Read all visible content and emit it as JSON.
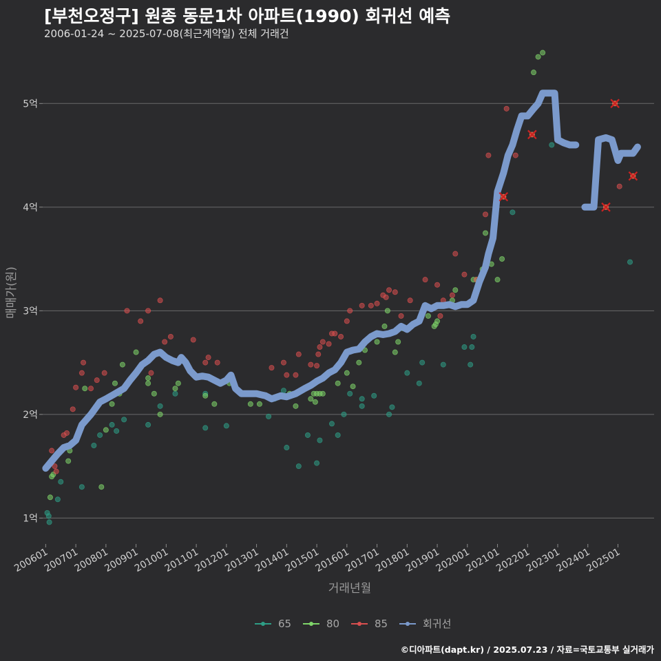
{
  "header": {
    "title": "[부천오정구] 원종 동문1차 아파트(1990) 회귀선 예측",
    "subtitle": "2006-01-24 ~ 2025-07-08(최근계약일) 전체 거래건"
  },
  "footer": {
    "caption": "©디아파트(dapt.kr) / 2025.07.23 / 자료=국토교통부 실거래가"
  },
  "colors": {
    "s65": "#2e9e86",
    "s80": "#7fd66a",
    "s85": "#d94f4f",
    "reg": "#7b9acc",
    "cancel": "#cc2222"
  },
  "chart_data": {
    "type": "scatter",
    "title": "[부천오정구] 원종 동문1차 아파트(1990) 회귀선 예측",
    "subtitle": "2006-01-24 ~ 2025-07-08(최근계약일) 전체 거래건",
    "xlabel": "거래년월",
    "ylabel": "매매가(원)",
    "ylim": [
      0.75,
      5.6
    ],
    "xlim": [
      2005.9,
      2026.2
    ],
    "yticks": [
      1,
      2,
      3,
      4,
      5
    ],
    "ytick_labels": [
      "1억",
      "2억",
      "3억",
      "4억",
      "5억"
    ],
    "xticks": [
      2006,
      2007,
      2008,
      2009,
      2010,
      2011,
      2012,
      2013,
      2014,
      2015,
      2016,
      2017,
      2018,
      2019,
      2020,
      2021,
      2022,
      2023,
      2024,
      2025
    ],
    "xtick_labels": [
      "200601",
      "200701",
      "200801",
      "200901",
      "201001",
      "201101",
      "201201",
      "201301",
      "201401",
      "201501",
      "201601",
      "201701",
      "201801",
      "201901",
      "202001",
      "202101",
      "202201",
      "202301",
      "202401",
      "202501"
    ],
    "grid": "horizontal",
    "legend_position": "bottom",
    "series": [
      {
        "name": "65",
        "kind": "scatter",
        "points": [
          [
            2006.05,
            1.05
          ],
          [
            2006.1,
            1.02
          ],
          [
            2006.12,
            0.96
          ],
          [
            2006.4,
            1.18
          ],
          [
            2006.5,
            1.35
          ],
          [
            2007.2,
            1.3
          ],
          [
            2007.6,
            1.7
          ],
          [
            2007.8,
            1.8
          ],
          [
            2008.2,
            1.9
          ],
          [
            2008.35,
            1.84
          ],
          [
            2008.6,
            1.95
          ],
          [
            2009.4,
            1.9
          ],
          [
            2009.8,
            2.08
          ],
          [
            2010.3,
            2.2
          ],
          [
            2011.3,
            2.2
          ],
          [
            2011.3,
            1.87
          ],
          [
            2012.0,
            1.89
          ],
          [
            2013.4,
            1.98
          ],
          [
            2013.6,
            2.15
          ],
          [
            2013.9,
            2.23
          ],
          [
            2014.0,
            1.68
          ],
          [
            2014.4,
            1.5
          ],
          [
            2014.7,
            1.8
          ],
          [
            2015.0,
            1.53
          ],
          [
            2015.1,
            1.75
          ],
          [
            2015.5,
            1.91
          ],
          [
            2015.7,
            1.8
          ],
          [
            2015.9,
            2.0
          ],
          [
            2016.1,
            2.2
          ],
          [
            2016.5,
            2.08
          ],
          [
            2016.5,
            2.15
          ],
          [
            2016.9,
            2.18
          ],
          [
            2017.4,
            2.0
          ],
          [
            2017.5,
            2.07
          ],
          [
            2018.0,
            2.4
          ],
          [
            2018.4,
            2.3
          ],
          [
            2018.5,
            2.5
          ],
          [
            2019.2,
            2.48
          ],
          [
            2019.9,
            2.65
          ],
          [
            2020.1,
            2.48
          ],
          [
            2020.15,
            2.65
          ],
          [
            2020.2,
            2.75
          ],
          [
            2021.5,
            3.95
          ],
          [
            2022.8,
            4.6
          ],
          [
            2025.4,
            3.47
          ]
        ]
      },
      {
        "name": "80",
        "kind": "scatter",
        "points": [
          [
            2006.15,
            1.2
          ],
          [
            2006.2,
            1.4
          ],
          [
            2006.25,
            1.42
          ],
          [
            2006.75,
            1.55
          ],
          [
            2006.8,
            1.65
          ],
          [
            2007.3,
            2.25
          ],
          [
            2007.85,
            1.3
          ],
          [
            2008.0,
            1.85
          ],
          [
            2008.2,
            2.1
          ],
          [
            2008.3,
            2.3
          ],
          [
            2008.45,
            2.2
          ],
          [
            2008.55,
            2.48
          ],
          [
            2009.0,
            2.6
          ],
          [
            2009.4,
            2.3
          ],
          [
            2009.4,
            2.35
          ],
          [
            2009.6,
            2.2
          ],
          [
            2009.8,
            2.0
          ],
          [
            2010.3,
            2.25
          ],
          [
            2010.4,
            2.3
          ],
          [
            2011.3,
            2.18
          ],
          [
            2011.6,
            2.1
          ],
          [
            2012.1,
            2.3
          ],
          [
            2012.8,
            2.1
          ],
          [
            2013.1,
            2.1
          ],
          [
            2014.1,
            2.2
          ],
          [
            2014.3,
            2.08
          ],
          [
            2014.8,
            2.15
          ],
          [
            2014.9,
            2.2
          ],
          [
            2014.95,
            2.12
          ],
          [
            2015.0,
            2.2
          ],
          [
            2015.1,
            2.2
          ],
          [
            2015.2,
            2.2
          ],
          [
            2015.7,
            2.3
          ],
          [
            2016.0,
            2.4
          ],
          [
            2016.2,
            2.27
          ],
          [
            2016.4,
            2.5
          ],
          [
            2016.6,
            2.62
          ],
          [
            2017.0,
            2.7
          ],
          [
            2017.25,
            2.85
          ],
          [
            2017.35,
            3.0
          ],
          [
            2017.6,
            2.6
          ],
          [
            2017.7,
            2.7
          ],
          [
            2017.85,
            2.83
          ],
          [
            2018.7,
            2.95
          ],
          [
            2018.9,
            2.85
          ],
          [
            2018.95,
            2.87
          ],
          [
            2019.0,
            2.9
          ],
          [
            2019.2,
            3.05
          ],
          [
            2019.5,
            3.1
          ],
          [
            2019.6,
            3.2
          ],
          [
            2020.2,
            3.3
          ],
          [
            2020.3,
            3.3
          ],
          [
            2020.5,
            3.4
          ],
          [
            2020.6,
            3.75
          ],
          [
            2020.8,
            3.45
          ],
          [
            2021.0,
            3.3
          ],
          [
            2021.15,
            3.5
          ],
          [
            2022.2,
            5.3
          ],
          [
            2022.35,
            5.45
          ],
          [
            2022.5,
            5.49
          ]
        ]
      },
      {
        "name": "85",
        "kind": "scatter",
        "points": [
          [
            2006.2,
            1.65
          ],
          [
            2006.3,
            1.5
          ],
          [
            2006.35,
            1.45
          ],
          [
            2006.6,
            1.8
          ],
          [
            2006.7,
            1.82
          ],
          [
            2006.9,
            2.05
          ],
          [
            2007.0,
            2.26
          ],
          [
            2007.2,
            2.4
          ],
          [
            2007.25,
            2.5
          ],
          [
            2007.5,
            2.25
          ],
          [
            2007.7,
            2.33
          ],
          [
            2007.95,
            2.4
          ],
          [
            2008.7,
            3.0
          ],
          [
            2009.15,
            2.9
          ],
          [
            2009.4,
            3.0
          ],
          [
            2009.5,
            2.4
          ],
          [
            2009.8,
            3.1
          ],
          [
            2009.95,
            2.7
          ],
          [
            2010.15,
            2.75
          ],
          [
            2010.9,
            2.72
          ],
          [
            2011.3,
            2.5
          ],
          [
            2011.4,
            2.55
          ],
          [
            2011.7,
            2.5
          ],
          [
            2013.5,
            2.45
          ],
          [
            2013.9,
            2.5
          ],
          [
            2014.0,
            2.38
          ],
          [
            2014.3,
            2.38
          ],
          [
            2014.4,
            2.58
          ],
          [
            2014.8,
            2.48
          ],
          [
            2015.0,
            2.47
          ],
          [
            2015.05,
            2.58
          ],
          [
            2015.1,
            2.65
          ],
          [
            2015.2,
            2.7
          ],
          [
            2015.4,
            2.68
          ],
          [
            2015.5,
            2.78
          ],
          [
            2015.6,
            2.78
          ],
          [
            2015.8,
            2.75
          ],
          [
            2016.0,
            2.9
          ],
          [
            2016.1,
            3.0
          ],
          [
            2016.5,
            3.05
          ],
          [
            2016.8,
            3.05
          ],
          [
            2017.0,
            3.07
          ],
          [
            2017.2,
            3.15
          ],
          [
            2017.3,
            3.13
          ],
          [
            2017.4,
            3.2
          ],
          [
            2017.6,
            3.18
          ],
          [
            2017.8,
            2.95
          ],
          [
            2018.1,
            3.1
          ],
          [
            2018.6,
            3.3
          ],
          [
            2019.0,
            3.25
          ],
          [
            2019.1,
            2.95
          ],
          [
            2019.2,
            3.1
          ],
          [
            2019.5,
            3.15
          ],
          [
            2019.6,
            3.55
          ],
          [
            2019.9,
            3.35
          ],
          [
            2020.3,
            3.3
          ],
          [
            2020.6,
            3.93
          ],
          [
            2020.7,
            4.5
          ],
          [
            2021.2,
            4.1
          ],
          [
            2021.3,
            4.95
          ],
          [
            2021.6,
            4.5
          ],
          [
            2022.15,
            4.7
          ],
          [
            2024.6,
            4.0
          ],
          [
            2024.9,
            5.0
          ],
          [
            2025.05,
            4.2
          ],
          [
            2025.5,
            4.3
          ]
        ]
      },
      {
        "name": "회귀선",
        "kind": "line",
        "points": [
          [
            2006.0,
            1.48
          ],
          [
            2006.2,
            1.55
          ],
          [
            2006.4,
            1.62
          ],
          [
            2006.6,
            1.68
          ],
          [
            2006.8,
            1.7
          ],
          [
            2007.0,
            1.75
          ],
          [
            2007.2,
            1.9
          ],
          [
            2007.5,
            2.0
          ],
          [
            2007.8,
            2.12
          ],
          [
            2008.0,
            2.15
          ],
          [
            2008.3,
            2.2
          ],
          [
            2008.6,
            2.25
          ],
          [
            2008.8,
            2.33
          ],
          [
            2009.0,
            2.4
          ],
          [
            2009.2,
            2.48
          ],
          [
            2009.4,
            2.52
          ],
          [
            2009.6,
            2.58
          ],
          [
            2009.8,
            2.6
          ],
          [
            2010.0,
            2.55
          ],
          [
            2010.2,
            2.52
          ],
          [
            2010.4,
            2.5
          ],
          [
            2010.5,
            2.55
          ],
          [
            2010.65,
            2.5
          ],
          [
            2010.8,
            2.42
          ],
          [
            2011.0,
            2.36
          ],
          [
            2011.2,
            2.37
          ],
          [
            2011.4,
            2.36
          ],
          [
            2011.6,
            2.33
          ],
          [
            2011.8,
            2.3
          ],
          [
            2012.0,
            2.33
          ],
          [
            2012.15,
            2.38
          ],
          [
            2012.3,
            2.25
          ],
          [
            2012.5,
            2.2
          ],
          [
            2012.8,
            2.2
          ],
          [
            2013.0,
            2.2
          ],
          [
            2013.3,
            2.18
          ],
          [
            2013.5,
            2.15
          ],
          [
            2013.8,
            2.18
          ],
          [
            2014.0,
            2.17
          ],
          [
            2014.3,
            2.2
          ],
          [
            2014.6,
            2.25
          ],
          [
            2014.8,
            2.28
          ],
          [
            2015.0,
            2.32
          ],
          [
            2015.2,
            2.35
          ],
          [
            2015.4,
            2.4
          ],
          [
            2015.6,
            2.43
          ],
          [
            2015.8,
            2.5
          ],
          [
            2016.0,
            2.6
          ],
          [
            2016.2,
            2.62
          ],
          [
            2016.4,
            2.63
          ],
          [
            2016.6,
            2.7
          ],
          [
            2016.8,
            2.75
          ],
          [
            2017.0,
            2.78
          ],
          [
            2017.2,
            2.77
          ],
          [
            2017.4,
            2.78
          ],
          [
            2017.6,
            2.8
          ],
          [
            2017.8,
            2.85
          ],
          [
            2018.0,
            2.82
          ],
          [
            2018.2,
            2.87
          ],
          [
            2018.4,
            2.9
          ],
          [
            2018.6,
            3.05
          ],
          [
            2018.8,
            3.02
          ],
          [
            2019.0,
            3.05
          ],
          [
            2019.2,
            3.05
          ],
          [
            2019.4,
            3.06
          ],
          [
            2019.6,
            3.04
          ],
          [
            2019.8,
            3.06
          ],
          [
            2020.0,
            3.06
          ],
          [
            2020.2,
            3.1
          ],
          [
            2020.4,
            3.28
          ],
          [
            2020.6,
            3.42
          ],
          [
            2020.7,
            3.55
          ],
          [
            2020.85,
            3.7
          ],
          [
            2021.0,
            4.15
          ],
          [
            2021.2,
            4.33
          ],
          [
            2021.35,
            4.5
          ],
          [
            2021.5,
            4.6
          ],
          [
            2021.65,
            4.75
          ],
          [
            2021.8,
            4.88
          ],
          [
            2022.0,
            4.88
          ],
          [
            2022.2,
            4.95
          ],
          [
            2022.35,
            5.0
          ],
          [
            2022.5,
            5.1
          ],
          [
            2022.7,
            5.1
          ],
          [
            2022.9,
            5.1
          ],
          [
            2023.0,
            4.65
          ],
          [
            2023.2,
            4.62
          ],
          [
            2023.4,
            4.6
          ],
          [
            2023.6,
            4.6
          ]
        ]
      },
      {
        "name": "회귀선",
        "kind": "line",
        "points": [
          [
            2023.9,
            4.0
          ],
          [
            2024.2,
            4.0
          ],
          [
            2024.35,
            4.65
          ],
          [
            2024.6,
            4.67
          ],
          [
            2024.8,
            4.65
          ],
          [
            2025.0,
            4.45
          ],
          [
            2025.1,
            4.52
          ],
          [
            2025.3,
            4.52
          ],
          [
            2025.5,
            4.52
          ],
          [
            2025.65,
            4.58
          ]
        ]
      }
    ],
    "cancelled_markers": [
      [
        2021.2,
        4.1
      ],
      [
        2022.15,
        4.7
      ],
      [
        2024.6,
        4.0
      ],
      [
        2024.9,
        5.0
      ],
      [
        2025.5,
        4.3
      ]
    ]
  }
}
